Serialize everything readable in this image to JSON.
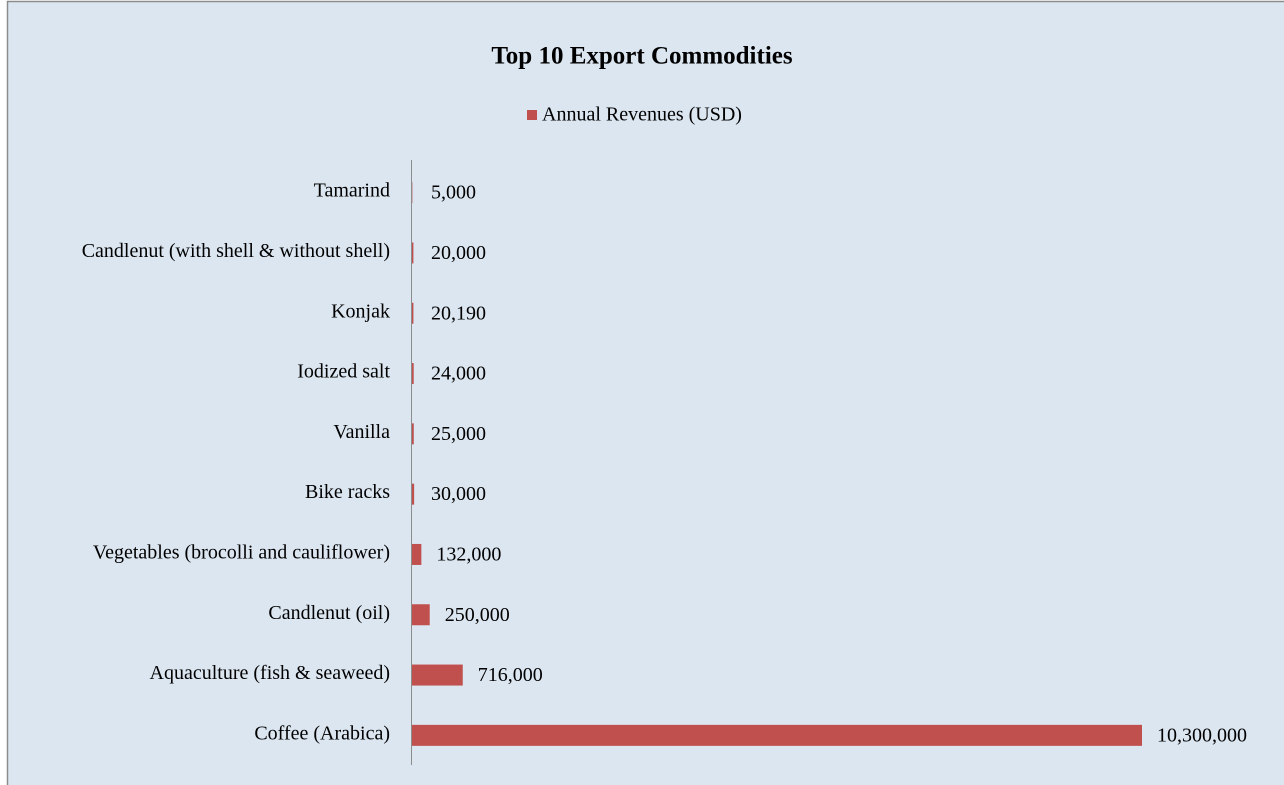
{
  "chart_data": {
    "type": "bar",
    "orientation": "horizontal",
    "title": "Top 10 Export Commodities",
    "categories": [
      "Tamarind",
      "Candlenut (with shell & without shell)",
      "Konjak",
      "Iodized salt",
      "Vanilla",
      "Bike racks",
      "Vegetables (brocolli and cauliflower)",
      "Candlenut (oil)",
      "Aquaculture (fish & seaweed)",
      "Coffee (Arabica)"
    ],
    "series": [
      {
        "name": "Annual Revenues (USD)",
        "color": "#c0504d",
        "values": [
          5000,
          20000,
          20190,
          24000,
          25000,
          30000,
          132000,
          250000,
          716000,
          10300000
        ],
        "value_labels": [
          "5,000",
          "20,000",
          "20,190",
          "24,000",
          "25,000",
          "30,000",
          "132,000",
          "250,000",
          "716,000",
          "10,300,000"
        ]
      }
    ],
    "legend": "top"
  }
}
